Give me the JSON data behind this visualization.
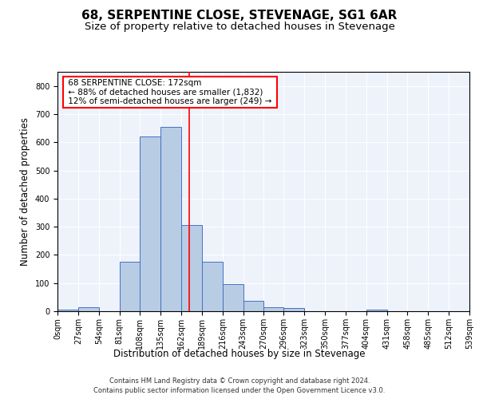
{
  "title": "68, SERPENTINE CLOSE, STEVENAGE, SG1 6AR",
  "subtitle": "Size of property relative to detached houses in Stevenage",
  "xlabel": "Distribution of detached houses by size in Stevenage",
  "ylabel": "Number of detached properties",
  "footer_line1": "Contains HM Land Registry data © Crown copyright and database right 2024.",
  "footer_line2": "Contains public sector information licensed under the Open Government Licence v3.0.",
  "bin_edges": [
    0,
    27,
    54,
    81,
    108,
    135,
    162,
    189,
    216,
    243,
    270,
    296,
    323,
    350,
    377,
    404,
    431,
    458,
    485,
    512,
    539
  ],
  "bar_heights": [
    5,
    13,
    0,
    175,
    620,
    655,
    305,
    175,
    97,
    38,
    13,
    10,
    0,
    0,
    0,
    5,
    0,
    0,
    0,
    0
  ],
  "bar_color": "#b8cce4",
  "bar_edge_color": "#4472c4",
  "red_line_x": 172,
  "ylim": [
    0,
    850
  ],
  "yticks": [
    0,
    100,
    200,
    300,
    400,
    500,
    600,
    700,
    800
  ],
  "annotation_title": "68 SERPENTINE CLOSE: 172sqm",
  "annotation_line1": "← 88% of detached houses are smaller (1,832)",
  "annotation_line2": "12% of semi-detached houses are larger (249) →",
  "background_color": "#eef2fb",
  "grid_color": "#ffffff",
  "title_fontsize": 11,
  "subtitle_fontsize": 9.5,
  "tick_label_fontsize": 7,
  "axis_label_fontsize": 8.5,
  "footer_fontsize": 6
}
